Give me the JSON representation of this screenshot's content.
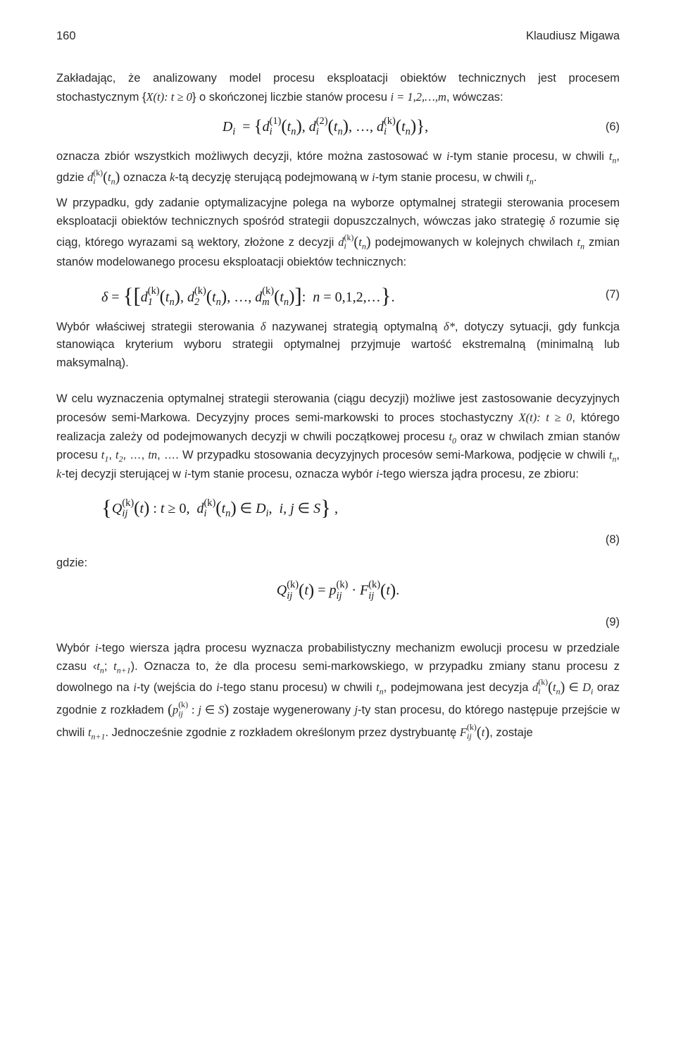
{
  "header": {
    "page_number": "160",
    "author": "Klaudiusz Migawa"
  },
  "p1": {
    "text_before": "Zakładając, że analizowany model procesu eksploatacji obiektów technicznych jest procesem stochastycznym {",
    "xt": "X(t): t ≥ 0",
    "text_mid": "} o skończonej liczbie stanów procesu ",
    "i_series": "i = 1,2,…,m",
    "after": ", wówczas:"
  },
  "eq6": {
    "lhs": "D",
    "lhs_sub": "i",
    "number": "(6)"
  },
  "p2": {
    "text_a": "oznacza zbiór wszystkich możliwych decyzji, które można zastosować w ",
    "i_tym": "i",
    "text_b": "-tym stanie procesu, w chwili ",
    "tn": "t",
    "tn_sub": "n",
    "text_c": ", gdzie ",
    "text_d": " oznacza ",
    "k": "k",
    "text_e": "-tą decyzję sterującą podejmowaną w ",
    "i2": "i",
    "text_f": "-tym stanie procesu, w chwili ",
    "tn2": "t",
    "tn2_sub": "n",
    "period": "."
  },
  "p3": {
    "text_a": "W przypadku, gdy zadanie optymalizacyjne polega na wyborze optymalnej strategii sterowania procesem eksploatacji obiektów technicznych spośród strategii dopuszczalnych, wówczas jako strategię ",
    "delta": "δ",
    "text_b": " rozumie się ciąg, którego wyrazami są wektory, złożone z decyzji ",
    "text_c": " podejmowanych w kolejnych chwilach ",
    "tn": "t",
    "tn_sub": "n",
    "text_d": " zmian stanów modelowanego procesu eksploatacji obiektów technicznych:"
  },
  "eq7": {
    "lhs": "δ",
    "number": "(7)"
  },
  "p4": {
    "text_a": "Wybór właściwej strategii sterowania ",
    "delta": "δ",
    "text_b": " nazywanej strategią optymalną ",
    "delta_star": "δ*",
    "text_c": ", dotyczy sytuacji, gdy funkcja stanowiąca kryterium wyboru strategii optymalnej przyjmuje wartość ekstremalną (minimalną lub maksymalną)."
  },
  "p5": {
    "text_a": "W celu wyznaczenia optymalnej strategii sterowania (ciągu decyzji) możliwe jest zastosowanie decyzyjnych procesów semi-Markowa. Decyzyjny proces semi-markowski to proces stochastyczny ",
    "xt": "X(t): t ≥ 0",
    "text_b": ", którego realizacja zależy od podejmowanych decyzji w chwili początkowej procesu ",
    "t0": "t",
    "t0_sub": "0",
    "text_c": " oraz w chwilach zmian stanów procesu ",
    "t1": "t",
    "t1_sub": "1",
    "t2": "t",
    "t2_sub": "2",
    "text_d": ", …, ",
    "tnn": "tn",
    "text_e": ", …. W przypadku stosowania decyzyjnych procesów semi-Markowa, podjęcie w chwili ",
    "tn": "t",
    "tn_sub": "n",
    "text_f": ", ",
    "k": "k",
    "text_g": "-tej decyzji sterującej w ",
    "i": "i",
    "text_h": "-tym stanie procesu, oznacza wybór ",
    "i2": "i",
    "text_i": "-tego wiersza jądra procesu, ze zbioru:"
  },
  "eq8": {
    "number": "(8)"
  },
  "gdzie": "gdzie:",
  "eq9": {
    "number": "(9)"
  },
  "p6": {
    "text_a": "Wybór ",
    "i": "i",
    "text_b": "-tego wiersza jądra procesu wyznacza probabilistyczny mechanizm ewolucji procesu w przedziale czasu ‹",
    "tn": "t",
    "tn_sub": "n",
    "sep": "; ",
    "tn1": "t",
    "tn1_sub": "n+1",
    "text_c": "). Oznacza to, że dla procesu semi-markowskiego, w przypadku zmiany stanu procesu z dowolnego na ",
    "i2": "i",
    "text_d": "-ty (wejścia do ",
    "i3": "i",
    "text_e": "-tego stanu procesu) w chwili ",
    "tn2": "t",
    "tn2_sub": "n",
    "text_f": ", podejmowana jest decyzja ",
    "text_g": " oraz zgodnie z rozkładem ",
    "text_h": " zostaje wygenerowany ",
    "j": "j",
    "text_i": "-ty stan procesu, do którego następuje przejście w chwili ",
    "tn3": "t",
    "tn3_sub": "n+1",
    "text_j": ". Jednocześnie zgodnie z rozkładem określonym przez dystrybuantę ",
    "text_k": ", zostaje"
  }
}
